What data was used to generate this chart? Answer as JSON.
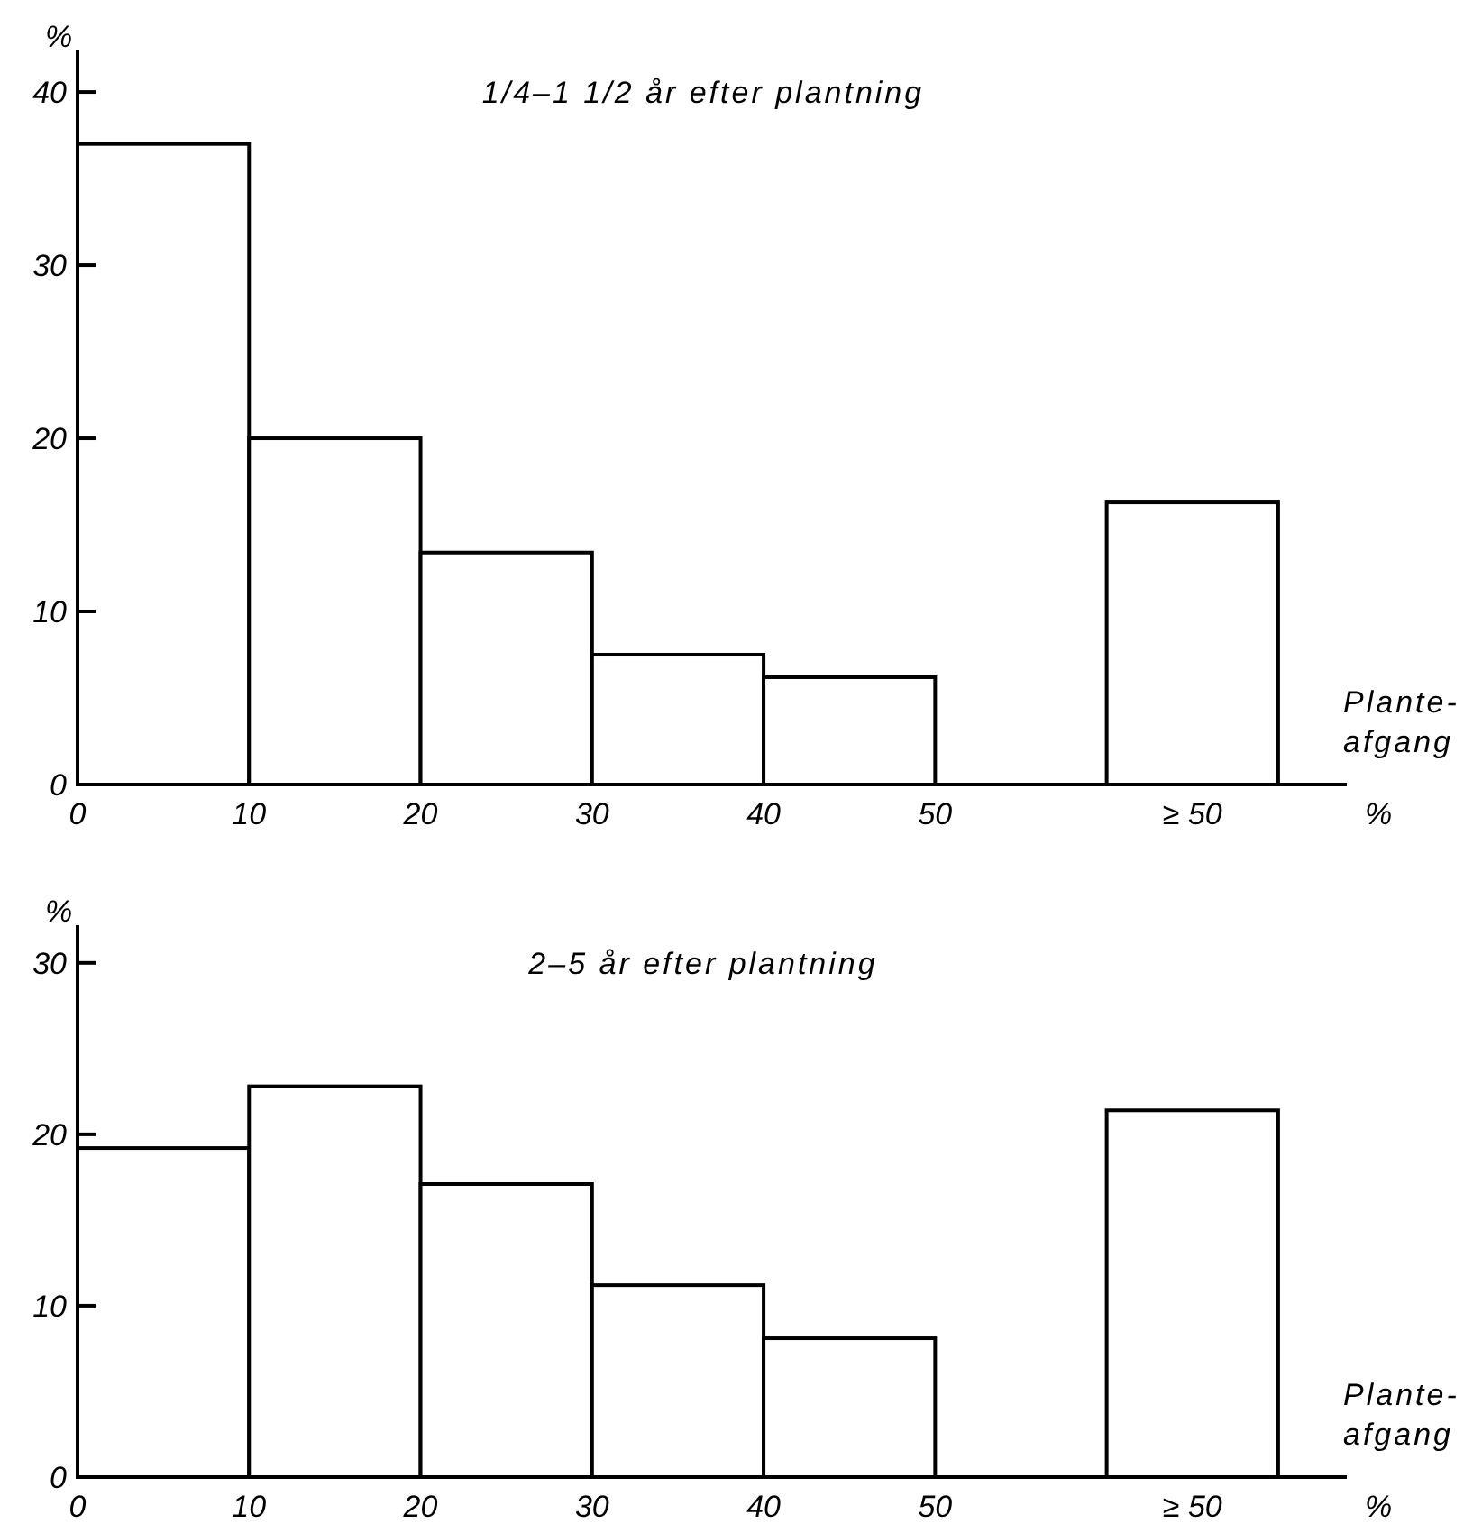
{
  "chart_data": [
    {
      "type": "bar",
      "title": "1/4–1 1/2 år efter plantning",
      "xlabel": "%",
      "ylabel": "%",
      "annotations": [
        "Plante-afgang"
      ],
      "x": [
        5,
        15,
        25,
        35,
        45,
        65
      ],
      "values": [
        37,
        20,
        13.4,
        7.5,
        6.2,
        16.3
      ],
      "color": "#ffffff",
      "xlim": [
        0,
        74
      ],
      "xticks": [
        0,
        10,
        20,
        30,
        40,
        50,
        {
          "value": 65,
          "label": "≥ 50"
        }
      ],
      "ylim": [
        0,
        42.4
      ],
      "yticks": [
        0,
        10,
        20,
        30,
        40
      ],
      "grid": false
    },
    {
      "type": "bar",
      "title": "2–5 år efter plantning",
      "xlabel": "%",
      "ylabel": "%",
      "annotations": [
        "Plante-afgang"
      ],
      "x": [
        5,
        15,
        25,
        35,
        45,
        65
      ],
      "values": [
        19.2,
        22.8,
        17.1,
        11.2,
        8.1,
        21.4
      ],
      "color": "#ffffff",
      "xlim": [
        0,
        74
      ],
      "xticks": [
        0,
        10,
        20,
        30,
        40,
        50,
        {
          "value": 65,
          "label": "≥ 50"
        }
      ],
      "ylim": [
        0,
        32.2
      ],
      "yticks": [
        0,
        10,
        20,
        30
      ],
      "grid": false
    }
  ]
}
